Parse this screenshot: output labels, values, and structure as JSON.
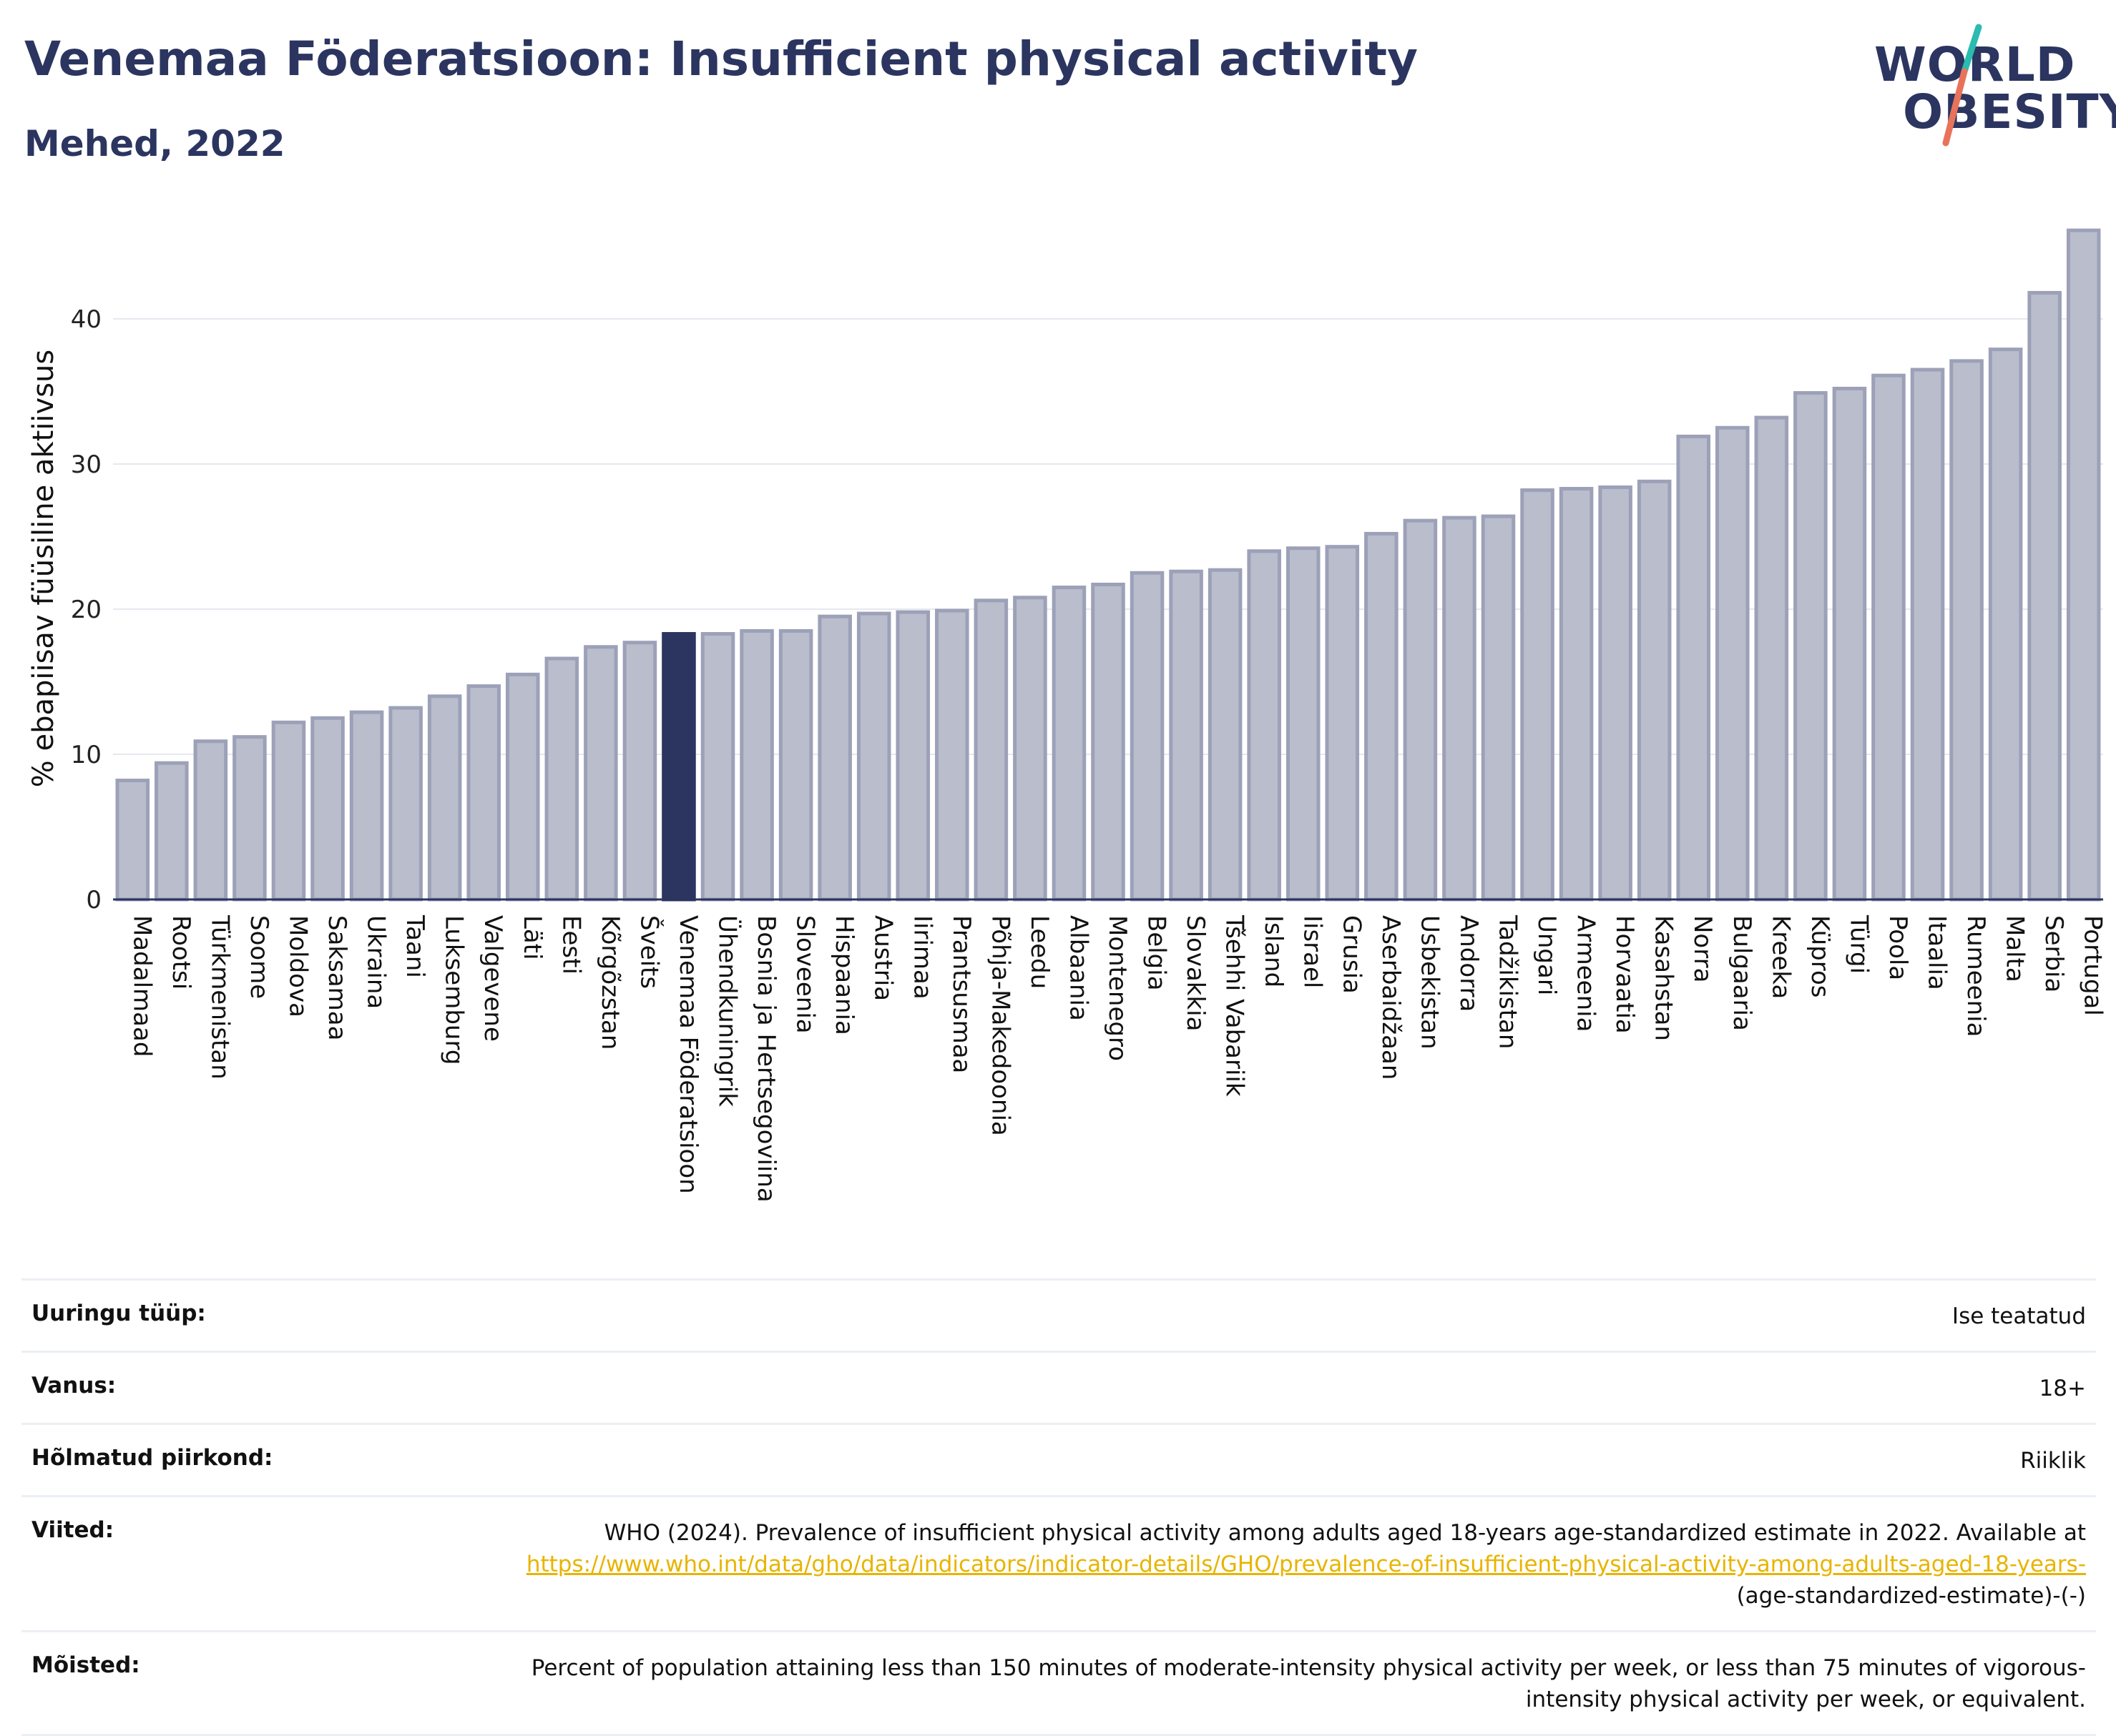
{
  "header": {
    "title": "Venemaa Föderatsioon: Insufficient physical activity",
    "subtitle": "Mehed, 2022"
  },
  "logo": {
    "line1": "WORLD",
    "line2": "OBESITY",
    "accent_colors": [
      "#e8735a",
      "#2bbbb0"
    ]
  },
  "colors": {
    "bar": "#b9bdcc",
    "bar_stroke": "#9ca1b8",
    "highlight": "#2b3560",
    "grid": "#e6e8ee",
    "axis": "#2b3560",
    "link": "#e8b400"
  },
  "chart_data": {
    "type": "bar",
    "ylabel": "% ebapiisav füüsiline aktiivsus",
    "ylim": [
      0,
      47
    ],
    "yticks": [
      0,
      10,
      20,
      30,
      40
    ],
    "highlight": "Venemaa Föderatsioon",
    "categories": [
      "Madalmaad",
      "Rootsi",
      "Türkmenistan",
      "Soome",
      "Moldova",
      "Saksamaa",
      "Ukraina",
      "Taani",
      "Luksemburg",
      "Valgevene",
      "Läti",
      "Eesti",
      "Kõrgõzstan",
      "Šveits",
      "Venemaa Föderatsioon",
      "Ühendkuningrik",
      "Bosnia ja Hertsegoviina",
      "Sloveenia",
      "Hispaania",
      "Austria",
      "Iirimaa",
      "Prantsusmaa",
      "Põhja-Makedoonia",
      "Leedu",
      "Albaania",
      "Montenegro",
      "Belgia",
      "Slovakkia",
      "Tšehhi Vabariik",
      "Island",
      "Iisrael",
      "Grusia",
      "Aserbaidžaan",
      "Usbekistan",
      "Andorra",
      "Tadžikistan",
      "Ungari",
      "Armeenia",
      "Horvaatia",
      "Kasahstan",
      "Norra",
      "Bulgaaria",
      "Kreeka",
      "Küpros",
      "Türgi",
      "Poola",
      "Itaalia",
      "Rumeenia",
      "Malta",
      "Serbia",
      "Portugal"
    ],
    "values": [
      8.2,
      9.4,
      10.9,
      11.2,
      12.2,
      12.5,
      12.9,
      13.2,
      14.0,
      14.7,
      15.5,
      16.6,
      17.4,
      17.7,
      18.3,
      18.3,
      18.5,
      18.5,
      19.5,
      19.7,
      19.8,
      19.9,
      20.6,
      20.8,
      21.5,
      21.7,
      22.5,
      22.6,
      22.7,
      24.0,
      24.2,
      24.3,
      25.2,
      26.1,
      26.3,
      26.4,
      28.2,
      28.3,
      28.4,
      28.8,
      31.9,
      32.5,
      33.2,
      34.9,
      35.2,
      36.1,
      36.5,
      37.1,
      37.9,
      41.8,
      46.1
    ]
  },
  "info": {
    "rows": [
      {
        "label": "Uuringu tüüp:",
        "value": "Ise teatatud"
      },
      {
        "label": "Vanus:",
        "value": "18+"
      },
      {
        "label": "Hõlmatud piirkond:",
        "value": "Riiklik"
      }
    ],
    "references": {
      "label": "Viited:",
      "text": "WHO (2024). Prevalence of insufficient physical activity among adults aged 18-years age-standardized estimate in 2022. Available at",
      "link": "https://www.who.int/data/gho/data/indicators/indicator-details/GHO/prevalence-of-insufficient-physical-activity-among-adults-aged-18-years-",
      "suffix": "(age-standardized-estimate)-(-)"
    },
    "definitions": {
      "label": "Mõisted:",
      "value": "Percent of population attaining less than 150 minutes of moderate-intensity physical activity per week, or less than 75 minutes of vigorous-intensity physical activity per week, or equivalent."
    }
  }
}
